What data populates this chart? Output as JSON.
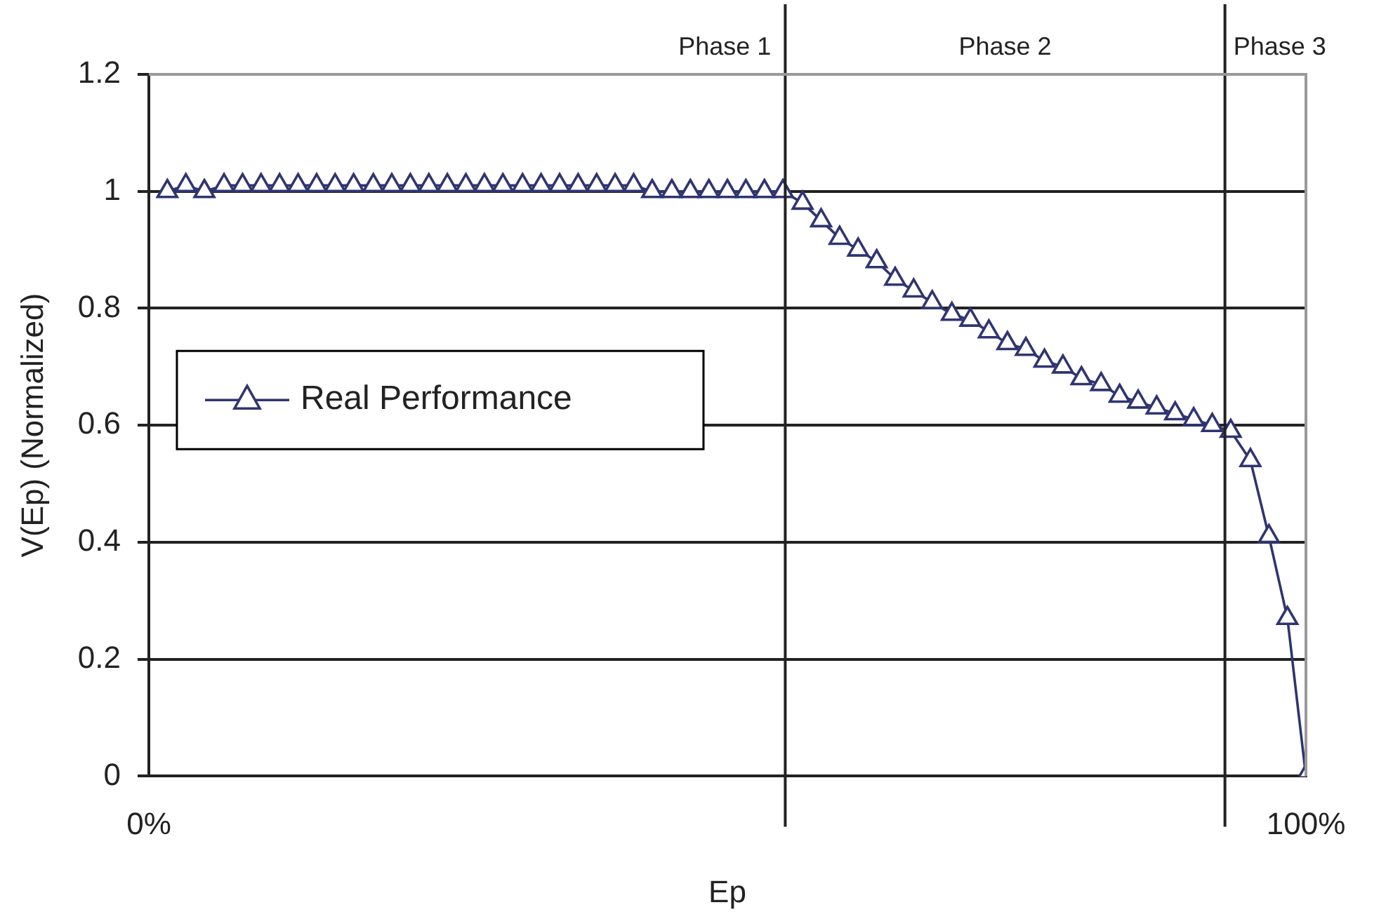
{
  "chart_data": {
    "type": "line",
    "xlabel": "Ep",
    "ylabel": "V(Ep) (Normalized)",
    "x": [
      1.6,
      3.2,
      4.8,
      6.5,
      8.1,
      9.7,
      11.3,
      12.9,
      14.5,
      16.1,
      17.7,
      19.4,
      21.0,
      22.6,
      24.2,
      25.8,
      27.4,
      29.0,
      30.6,
      32.3,
      33.9,
      35.5,
      37.1,
      38.7,
      40.3,
      41.9,
      43.5,
      45.2,
      46.8,
      48.4,
      50.0,
      51.6,
      53.2,
      54.8,
      56.5,
      58.1,
      59.7,
      61.3,
      62.9,
      64.5,
      66.1,
      67.7,
      69.4,
      71.0,
      72.6,
      74.2,
      75.8,
      77.4,
      79.0,
      80.6,
      82.3,
      83.9,
      85.5,
      87.1,
      88.7,
      90.3,
      91.9,
      93.5,
      95.2,
      96.8,
      98.4,
      100
    ],
    "series": [
      {
        "name": "Real Performance",
        "color": "#2f3570",
        "values": [
          1.0,
          1.01,
          1.0,
          1.01,
          1.01,
          1.01,
          1.01,
          1.01,
          1.01,
          1.01,
          1.01,
          1.01,
          1.01,
          1.01,
          1.01,
          1.01,
          1.01,
          1.01,
          1.01,
          1.01,
          1.01,
          1.01,
          1.01,
          1.01,
          1.01,
          1.01,
          1.0,
          1.0,
          1.0,
          1.0,
          1.0,
          1.0,
          1.0,
          1.0,
          0.98,
          0.95,
          0.92,
          0.9,
          0.88,
          0.85,
          0.83,
          0.81,
          0.79,
          0.78,
          0.76,
          0.74,
          0.73,
          0.71,
          0.7,
          0.68,
          0.67,
          0.65,
          0.64,
          0.63,
          0.62,
          0.61,
          0.6,
          0.59,
          0.54,
          0.41,
          0.27,
          0
        ]
      }
    ],
    "xlim": [
      0,
      100
    ],
    "xticks": [
      {
        "value": 0,
        "label": "0%"
      },
      {
        "value": 100,
        "label": "100%"
      }
    ],
    "ylim": [
      0,
      1.2
    ],
    "yticks": [
      0,
      0.2,
      0.4,
      0.6,
      0.8,
      1,
      1.2
    ],
    "ref_lines": [
      {
        "axis": "x",
        "value": 55
      },
      {
        "axis": "x",
        "value": 93
      }
    ],
    "annotations": [
      "Phase 1",
      "Phase 2",
      "Phase 3"
    ],
    "grid": "y",
    "legend": "left",
    "marker": "triangle",
    "line_style": "solid"
  }
}
